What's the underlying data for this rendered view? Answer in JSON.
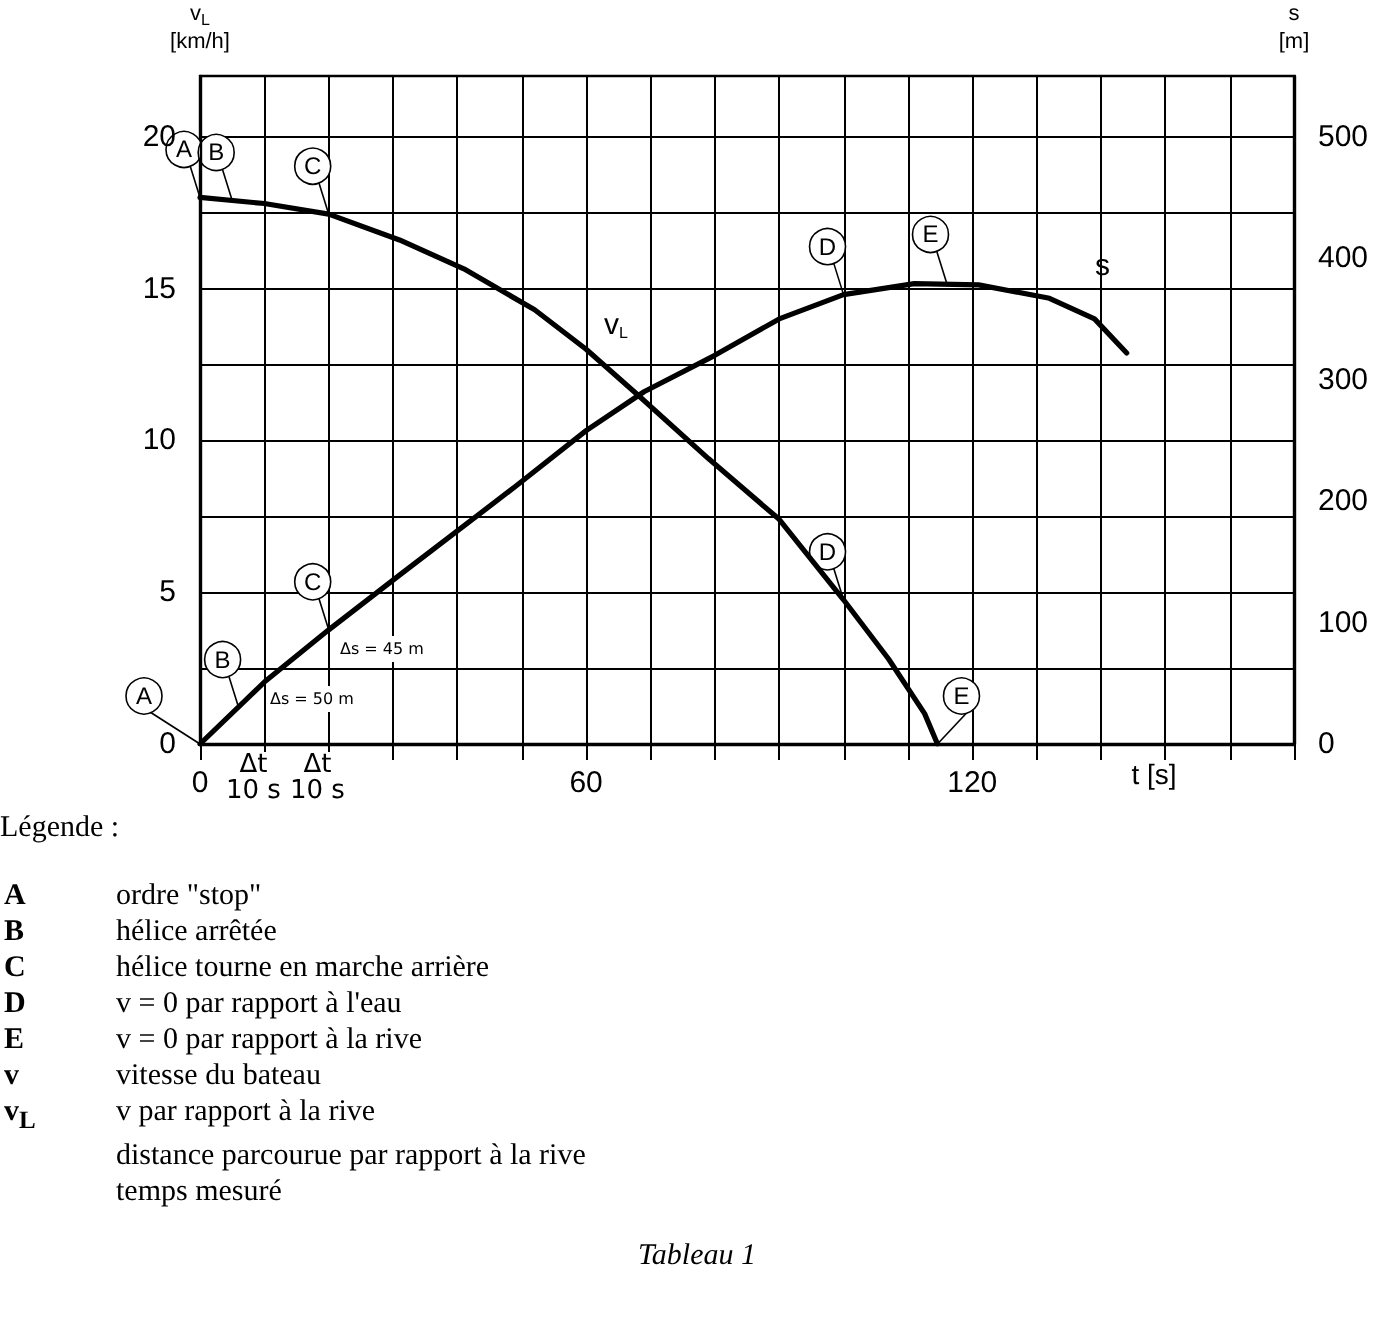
{
  "chart_data": {
    "type": "line",
    "xlabel": "t [s]",
    "ylabel": "v$_{L}$\n[km/h]",
    "y2label": "s\n[m]",
    "series": [
      {
        "name": "v$_{L}$",
        "color": "#000000",
        "x": [
          0,
          10,
          20,
          31,
          41,
          52,
          60,
          68,
          79,
          90,
          100,
          107,
          112.6,
          114.6
        ],
        "values": [
          18,
          17.8,
          17.45,
          16.6,
          15.65,
          14.3,
          13,
          11.5,
          9.4,
          7.4,
          4.75,
          2.8,
          1,
          0
        ]
      },
      {
        "name": "s",
        "color": "#000000",
        "axis": "y2",
        "x": [
          0,
          10,
          20,
          31,
          49,
          60,
          69,
          80,
          90,
          100,
          111,
          121,
          132,
          139,
          144
        ],
        "values": [
          0,
          51,
          94,
          139,
          212,
          258,
          290,
          320,
          350,
          370,
          379,
          378,
          367,
          350,
          322
        ]
      }
    ],
    "annotations": [
      {
        "text": "A",
        "x": 0,
        "y": 18
      },
      {
        "text": "B",
        "x": 5,
        "y": 17.9
      },
      {
        "text": "C",
        "x": 20,
        "y": 17.45
      },
      {
        "text": "D",
        "x": 100,
        "y": 4.75
      },
      {
        "text": "E",
        "x": 114.6,
        "y": 0
      },
      {
        "text": "A",
        "x": 0,
        "y": 0
      },
      {
        "text": "B",
        "x": 6,
        "y": 1.2
      },
      {
        "text": "C",
        "x": 20,
        "y": 3.76
      },
      {
        "text": "D",
        "x": 100,
        "y": 14.8
      },
      {
        "text": "E",
        "x": 116,
        "y": 15.2
      },
      "Δs = 50 m",
      "Δs = 45 m",
      "Δt\n10 s",
      "Δt\n10 s",
      "Légende :",
      "A\tordre \"stop\"",
      "B\thélice arrêtée",
      "C\thélice tourne en marche arrière",
      "D\tv = 0 par rapport à l'eau",
      "E\tv = 0 par rapport à la rive",
      "v\tvitesse du bateau",
      "v$_{L}$\tv par rapport à la rive",
      "\tdistance parcourue par rapport à la rive",
      "\ttemps mesuré",
      "Tableau 1"
    ],
    "xlim": [
      0,
      170
    ],
    "xticks": [
      0,
      {
        "value": 10,
        "label": null
      },
      {
        "value": 20,
        "label": null
      },
      {
        "value": 30,
        "label": null
      },
      {
        "value": 40,
        "label": null
      },
      {
        "value": 50,
        "label": null
      },
      60,
      {
        "value": 70,
        "label": null
      },
      {
        "value": 80,
        "label": null
      },
      {
        "value": 90,
        "label": null
      },
      {
        "value": 100,
        "label": null
      },
      {
        "value": 110,
        "label": null
      },
      120,
      {
        "value": 130,
        "label": null
      },
      {
        "value": 140,
        "label": null
      },
      {
        "value": 150,
        "label": null
      },
      {
        "value": 160,
        "label": null
      },
      {
        "value": 170,
        "label": null
      }
    ],
    "ylim": [
      0,
      22
    ],
    "yticks": [
      0,
      {
        "value": 2.5,
        "label": null
      },
      5,
      {
        "value": 7.5,
        "label": null
      },
      10,
      {
        "value": 12.5,
        "label": null
      },
      15,
      {
        "value": 17.5,
        "label": null
      },
      20
    ],
    "y2lim": [
      0,
      550
    ],
    "y2ticks": [
      0,
      100,
      200,
      300,
      400,
      500
    ],
    "grid": true,
    "marker": "none",
    "line_style": "solid"
  }
}
